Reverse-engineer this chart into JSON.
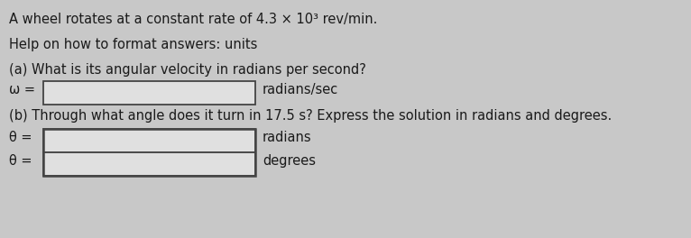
{
  "bg_color": "#c8c8c8",
  "title_line": "A wheel rotates at a constant rate of 4.3 × 10³ rev/min.",
  "help_line": "Help on how to format answers: units",
  "part_a_question": "(a) What is its angular velocity in radians per second?",
  "part_a_label": "ω =",
  "part_a_unit": "radians/sec",
  "part_b_question": "(b) Through what angle does it turn in 17.5 s? Express the solution in radians and degrees.",
  "part_b_label1": "θ =",
  "part_b_unit1": "radians",
  "part_b_label2": "θ =",
  "part_b_unit2": "degrees",
  "font_size": 10.5,
  "text_color": "#1a1a1a",
  "box_facecolor": "#e0e0e0",
  "box_edgecolor": "#444444"
}
